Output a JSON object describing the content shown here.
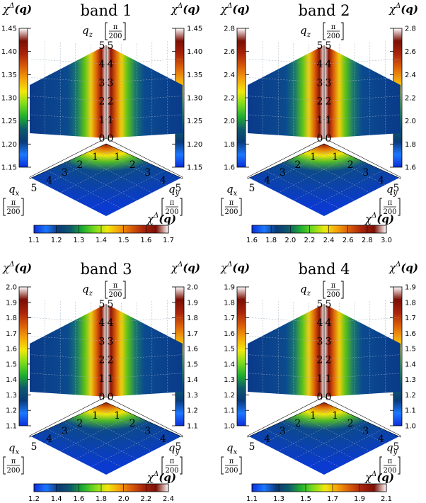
{
  "title_prefix": "band",
  "chi_label": "χ",
  "chi_sup": "Δ",
  "chi_arg": "(q)",
  "qx_label": "q",
  "qx_sub": "x",
  "qy_label": "q",
  "qy_sub": "y",
  "qz_label": "q",
  "qz_sub": "z",
  "unit_num": "π",
  "unit_den": "200",
  "axis_ticks": [
    "0",
    "1",
    "2",
    "3",
    "4",
    "5"
  ],
  "colormap": [
    "#0a2fd9",
    "#1c77ff",
    "#0a3a78",
    "#0d5a6b",
    "#1fae2f",
    "#7ddc1c",
    "#f2e80c",
    "#f5a00a",
    "#d85a0a",
    "#a8230a",
    "#7a0f05",
    "#ffffff"
  ],
  "panels": [
    {
      "band": "1",
      "side_ticks": [
        "1.15",
        "1.20",
        "1.25",
        "1.30",
        "1.35",
        "1.40",
        "1.45"
      ],
      "bottom_ticks": [
        "1.1",
        "1.2",
        "1.3",
        "1.4",
        "1.5",
        "1.6",
        "1.7"
      ]
    },
    {
      "band": "2",
      "side_ticks": [
        "1.6",
        "1.8",
        "2.0",
        "2.2",
        "2.4",
        "2.6",
        "2.8"
      ],
      "bottom_ticks": [
        "1.6",
        "1.8",
        "2.0",
        "2.2",
        "2.4",
        "2.6",
        "2.8",
        "3.0"
      ]
    },
    {
      "band": "3",
      "side_ticks": [
        "1.1",
        "1.2",
        "1.3",
        "1.4",
        "1.5",
        "1.6",
        "1.7",
        "1.8",
        "1.9",
        "2.0"
      ],
      "bottom_ticks": [
        "1.2",
        "1.4",
        "1.6",
        "1.8",
        "2.0",
        "2.2",
        "2.4"
      ]
    },
    {
      "band": "4",
      "side_ticks": [
        "1.0",
        "1.1",
        "1.2",
        "1.3",
        "1.4",
        "1.5",
        "1.6",
        "1.7",
        "1.8",
        "1.9"
      ],
      "bottom_ticks": [
        "1.1",
        "1.3",
        "1.5",
        "1.7",
        "1.9",
        "2.1"
      ]
    }
  ]
}
